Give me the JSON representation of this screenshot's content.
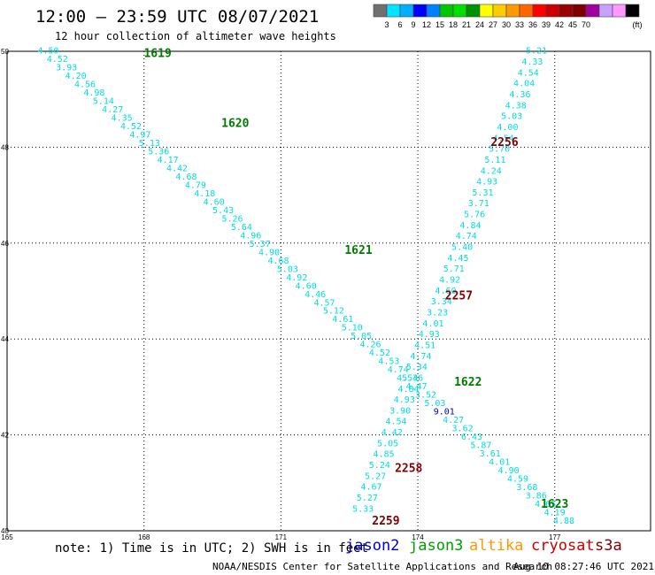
{
  "header": {
    "title": "12:00 – 23:59 UTC 08/07/2021",
    "subtitle": "12 hour collection of altimeter wave heights"
  },
  "colorbar": {
    "colors": [
      "#707070",
      "#00e5ff",
      "#00b0ff",
      "#0000ff",
      "#0080ff",
      "#00c800",
      "#00e000",
      "#009000",
      "#ffff00",
      "#ffcc00",
      "#ff9900",
      "#ff6600",
      "#ff0000",
      "#cc0000",
      "#990000",
      "#800000",
      "#a000a0",
      "#c8a0ff",
      "#ff99ff",
      "#000000"
    ],
    "labels": [
      "3",
      "6",
      "9",
      "12",
      "15",
      "18",
      "21",
      "24",
      "27",
      "30",
      "33",
      "36",
      "39",
      "42",
      "45",
      "70"
    ],
    "unit": "(ft)"
  },
  "map": {
    "x_ticks": [
      "165",
      "168",
      "171",
      "174",
      "177"
    ],
    "y_ticks": [
      "50",
      "48",
      "46",
      "44",
      "42",
      "40"
    ],
    "tick_color": "#000000",
    "label_color_default": "#00dddd"
  },
  "tracks": [
    {
      "values": [
        "4.50",
        "4.52",
        "3.93",
        "4.20",
        "4.56",
        "4.98",
        "5.14",
        "4.27",
        "4.35",
        "4.52",
        "4.97",
        "5.13",
        "5.36",
        "4.17",
        "4.42",
        "4.68",
        "4.79",
        "4.18",
        "4.60",
        "5.43",
        "5.26",
        "5.64",
        "4.96",
        "5.37",
        "4.90",
        "4.68",
        "5.03",
        "4.92",
        "4.60",
        "4.46",
        "4.57",
        "5.12",
        "4.61",
        "5.10",
        "5.05",
        "4.26",
        "4.52",
        "4.53",
        "4.74",
        "4.53",
        "4.47",
        "3.52",
        "5.03",
        "9.01",
        "4.27",
        "3.62",
        "6.43",
        "5.87",
        "3.61",
        "4.01",
        "4.90",
        "4.59",
        "3.68",
        "3.86",
        "4.65",
        "4.19",
        "4.88"
      ],
      "highlight": {
        "9.01": "#0000cc"
      },
      "lon_start": 165.9,
      "lat_start": 49.95,
      "lon_end": 177.2,
      "lat_end": 40.15,
      "times": [
        {
          "label": "1619",
          "lon": 168.3,
          "lat": 49.95,
          "color": "#007a00"
        },
        {
          "label": "1620",
          "lon": 170.0,
          "lat": 48.5,
          "color": "#007a00"
        },
        {
          "label": "1621",
          "lon": 172.7,
          "lat": 45.85,
          "color": "#007a00"
        },
        {
          "label": "1622",
          "lon": 175.1,
          "lat": 43.1,
          "color": "#007a00"
        },
        {
          "label": "1623",
          "lon": 177.0,
          "lat": 40.55,
          "color": "#007a00"
        }
      ]
    },
    {
      "values": [
        "5.21",
        "4.33",
        "4.54",
        "4.04",
        "4.36",
        "4.38",
        "5.03",
        "4.00",
        "4.54",
        "5.70",
        "5.11",
        "4.24",
        "4.93",
        "5.31",
        "3.71",
        "5.76",
        "4.84",
        "4.74",
        "5.40",
        "4.45",
        "5.71",
        "4.92",
        "4.60",
        "3.34",
        "3.23",
        "4.01",
        "4.93",
        "4.51",
        "4.74",
        "5.34",
        "5.46",
        "4.84",
        "4.93",
        "3.90",
        "4.54",
        "4.42",
        "5.05",
        "4.85",
        "5.24",
        "5.27",
        "4.67",
        "5.27",
        "5.33"
      ],
      "highlight": {},
      "lon_start": 176.6,
      "lat_start": 49.95,
      "lon_end": 172.8,
      "lat_end": 40.4,
      "times": [
        {
          "label": "2256",
          "lon": 175.9,
          "lat": 48.1,
          "color": "#800000"
        },
        {
          "label": "2257",
          "lon": 174.9,
          "lat": 44.9,
          "color": "#800000"
        },
        {
          "label": "2258",
          "lon": 173.8,
          "lat": 41.3,
          "color": "#800000"
        },
        {
          "label": "2259",
          "lon": 173.3,
          "lat": 40.2,
          "color": "#800000"
        }
      ]
    }
  ],
  "note": "note: 1) Time is in UTC; 2) SWH is in feet",
  "satellites": {
    "jason2": "jason2",
    "jason3": "jason3",
    "altika": "altika",
    "cryosat": "cryosat",
    "s3a": "s3a"
  },
  "footer": {
    "center": "NOAA/NESDIS Center for Satellite Applications and Research",
    "timestamp": "Aug 10 08:27:46 UTC 2021"
  }
}
